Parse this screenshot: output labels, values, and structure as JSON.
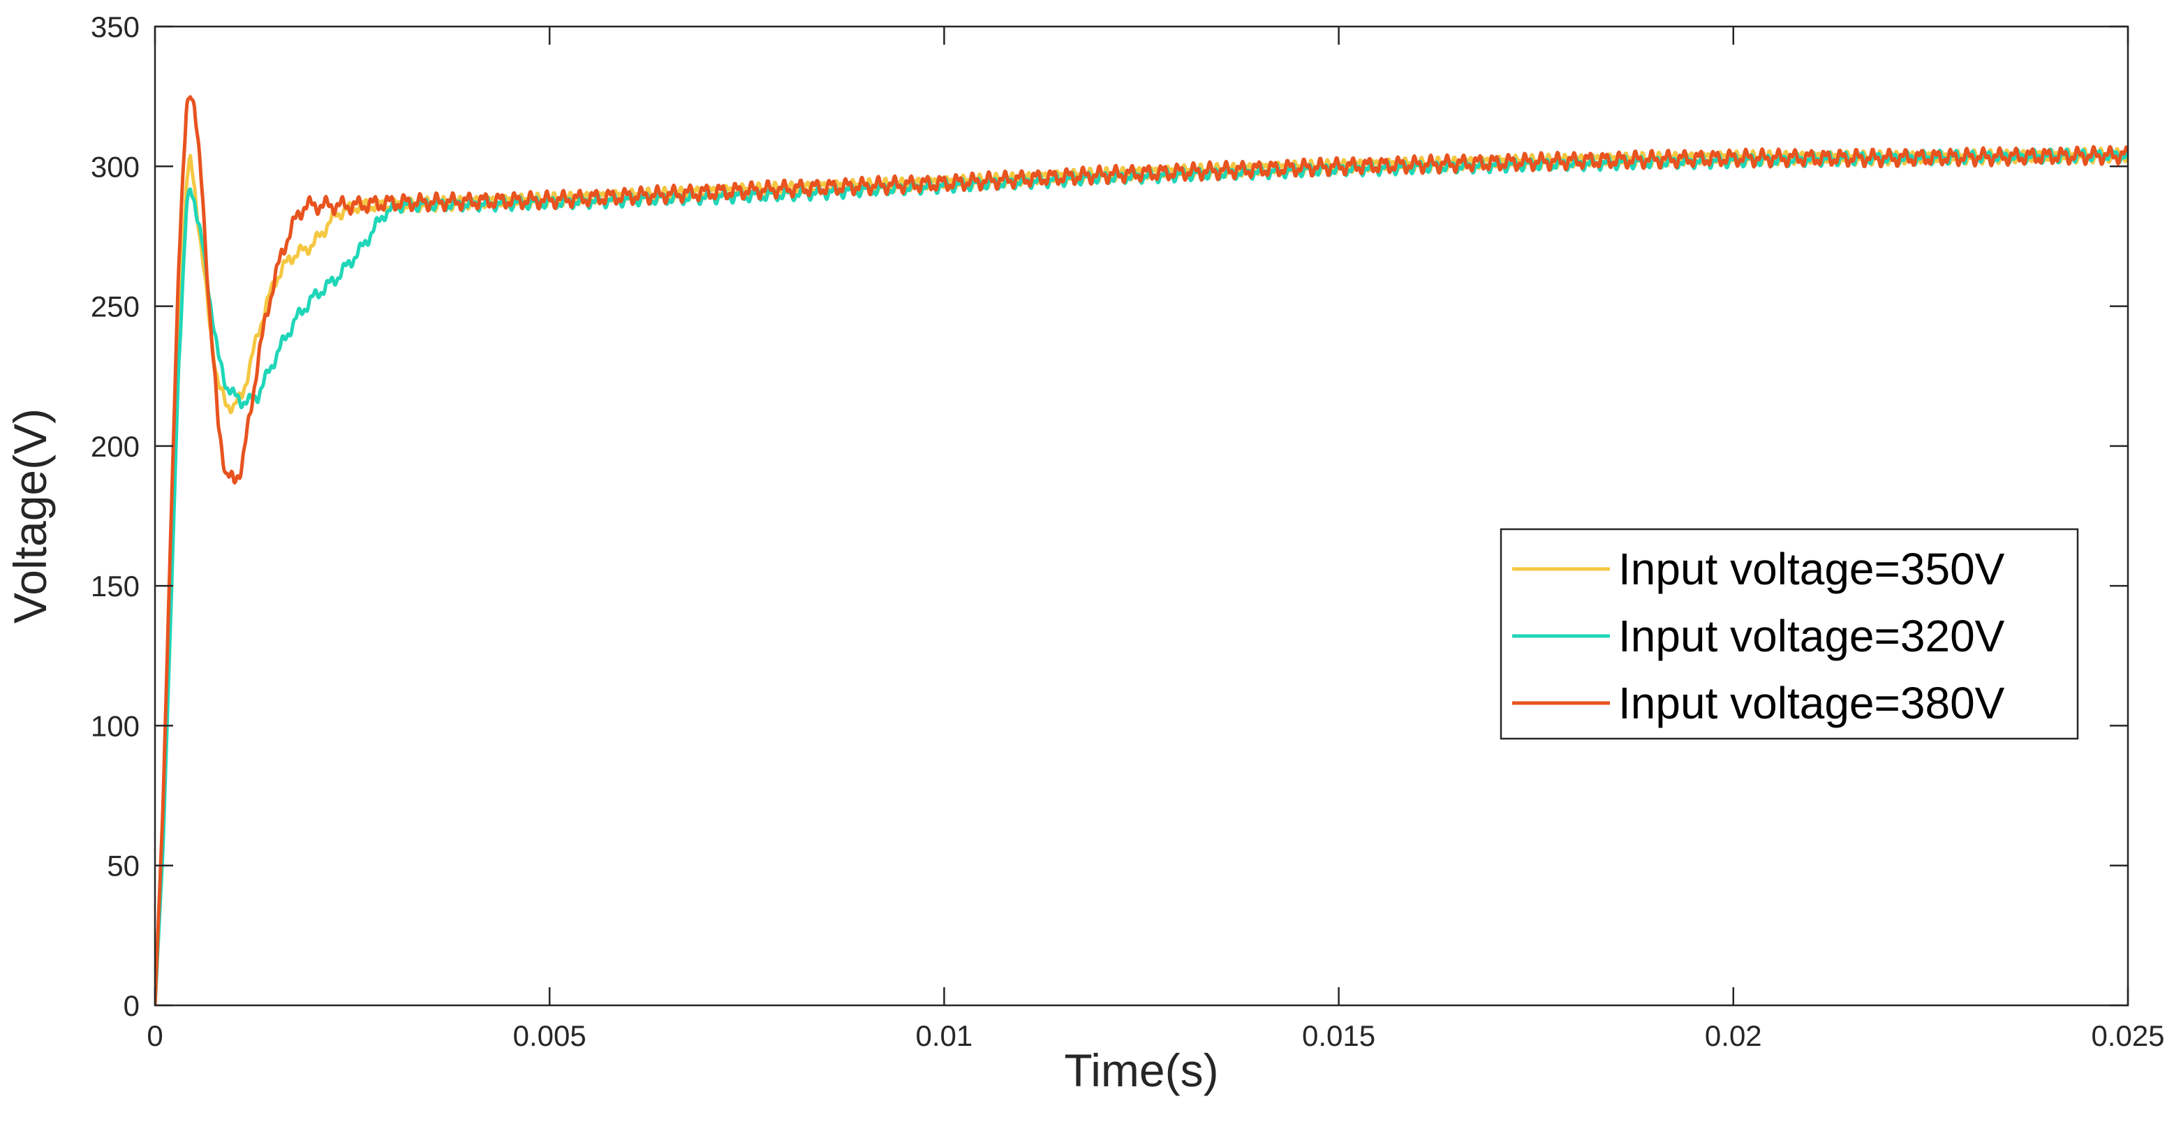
{
  "chart_data": {
    "type": "line",
    "xlabel": "Time(s)",
    "ylabel": "Voltage(V)",
    "xlim": [
      0,
      0.025
    ],
    "ylim": [
      0,
      350
    ],
    "xticks": [
      0,
      0.005,
      0.01,
      0.015,
      0.02,
      0.025
    ],
    "xtick_labels": [
      "0",
      "0.005",
      "0.01",
      "0.015",
      "0.02",
      "0.025"
    ],
    "yticks": [
      0,
      50,
      100,
      150,
      200,
      250,
      300,
      350
    ],
    "ytick_labels": [
      "0",
      "50",
      "100",
      "150",
      "200",
      "250",
      "300",
      "350"
    ],
    "grid": false,
    "legend_position": "right",
    "series": [
      {
        "name": "Input voltage=350V",
        "color": "#F5C842",
        "ripple": 1.6,
        "x": [
          0,
          0.0001,
          0.0002,
          0.0003,
          0.0004,
          0.00045,
          0.0005,
          0.0006,
          0.0007,
          0.0008,
          0.0009,
          0.001,
          0.0011,
          0.0012,
          0.0013,
          0.0015,
          0.0017,
          0.002,
          0.0023,
          0.0026,
          0.003,
          0.005,
          0.008,
          0.01,
          0.012,
          0.015,
          0.018,
          0.02,
          0.022,
          0.025
        ],
        "y": [
          0,
          60,
          150,
          240,
          295,
          302,
          292,
          268,
          242,
          222,
          215,
          214,
          218,
          228,
          240,
          258,
          267,
          272,
          283,
          286,
          286,
          288,
          292,
          294,
          297,
          300,
          302,
          303,
          303,
          304
        ]
      },
      {
        "name": "Input voltage=320V",
        "color": "#1FD6B8",
        "ripple": 1.6,
        "x": [
          0,
          0.0001,
          0.0002,
          0.0003,
          0.0004,
          0.00045,
          0.0005,
          0.0006,
          0.0007,
          0.0008,
          0.0009,
          0.001,
          0.0011,
          0.0012,
          0.0013,
          0.0014,
          0.0016,
          0.0018,
          0.002,
          0.0023,
          0.0026,
          0.0029,
          0.0031,
          0.005,
          0.008,
          0.01,
          0.012,
          0.015,
          0.018,
          0.02,
          0.022,
          0.025
        ],
        "y": [
          0,
          55,
          140,
          230,
          285,
          292,
          288,
          272,
          252,
          232,
          222,
          218,
          216,
          216,
          218,
          224,
          236,
          246,
          253,
          260,
          270,
          283,
          286,
          287,
          290,
          293,
          296,
          299,
          301,
          302,
          303,
          304
        ]
      },
      {
        "name": "Input voltage=380V",
        "color": "#E8531F",
        "ripple": 2.0,
        "x": [
          0,
          0.0001,
          0.0002,
          0.0003,
          0.0004,
          0.00045,
          0.0005,
          0.0006,
          0.0007,
          0.0008,
          0.0009,
          0.001,
          0.0011,
          0.0012,
          0.0013,
          0.0014,
          0.0015,
          0.0016,
          0.0017,
          0.0018,
          0.0019,
          0.0021,
          0.0025,
          0.003,
          0.005,
          0.008,
          0.01,
          0.012,
          0.015,
          0.018,
          0.02,
          0.022,
          0.025
        ],
        "y": [
          0,
          70,
          170,
          265,
          320,
          328,
          322,
          290,
          245,
          208,
          190,
          187,
          193,
          210,
          230,
          245,
          258,
          268,
          276,
          282,
          286,
          286,
          286,
          287,
          288,
          292,
          294,
          297,
          300,
          302,
          303,
          303,
          304
        ]
      }
    ]
  }
}
